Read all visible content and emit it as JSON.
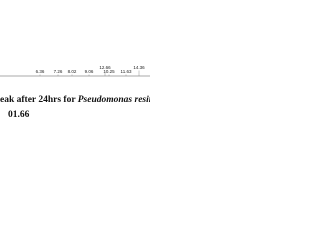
{
  "peak_labels": [
    "6.36",
    "7.26",
    "8.02",
    "9.06",
    "10.25",
    "11.63",
    "12.66",
    "14.36"
  ],
  "caption": {
    "line1_start": "eak after 24hrs for ",
    "line1_italic": "Pseudomonas resinov",
    "line2": "01.66"
  }
}
